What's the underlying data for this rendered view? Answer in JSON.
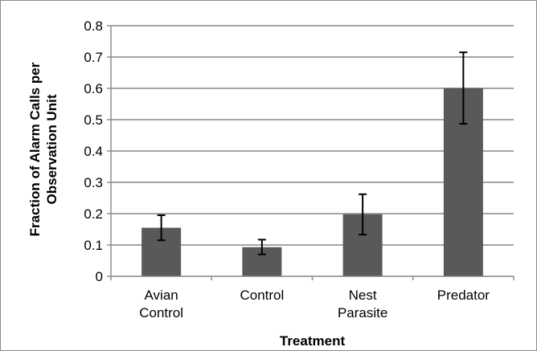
{
  "chart_data": {
    "type": "bar",
    "categories": [
      [
        "Avian",
        "Control"
      ],
      [
        "Control"
      ],
      [
        "Nest",
        "Parasite"
      ],
      [
        "Predator"
      ]
    ],
    "values": [
      0.155,
      0.093,
      0.198,
      0.601
    ],
    "error_bars": [
      {
        "low": 0.115,
        "high": 0.195
      },
      {
        "low": 0.07,
        "high": 0.117
      },
      {
        "low": 0.133,
        "high": 0.262
      },
      {
        "low": 0.487,
        "high": 0.715
      }
    ],
    "yticks": [
      "0",
      "0.1",
      "0.2",
      "0.3",
      "0.4",
      "0.5",
      "0.6",
      "0.7",
      "0.8"
    ],
    "ylim": [
      0,
      0.8
    ],
    "ylabel": [
      "Fraction of Alarm Calls per",
      "Observation Unit"
    ],
    "xlabel": "Treatment",
    "grid": true,
    "colors": {
      "bar": "#595959",
      "grid": "#868686",
      "axis": "#868686",
      "error": "#000000"
    }
  }
}
